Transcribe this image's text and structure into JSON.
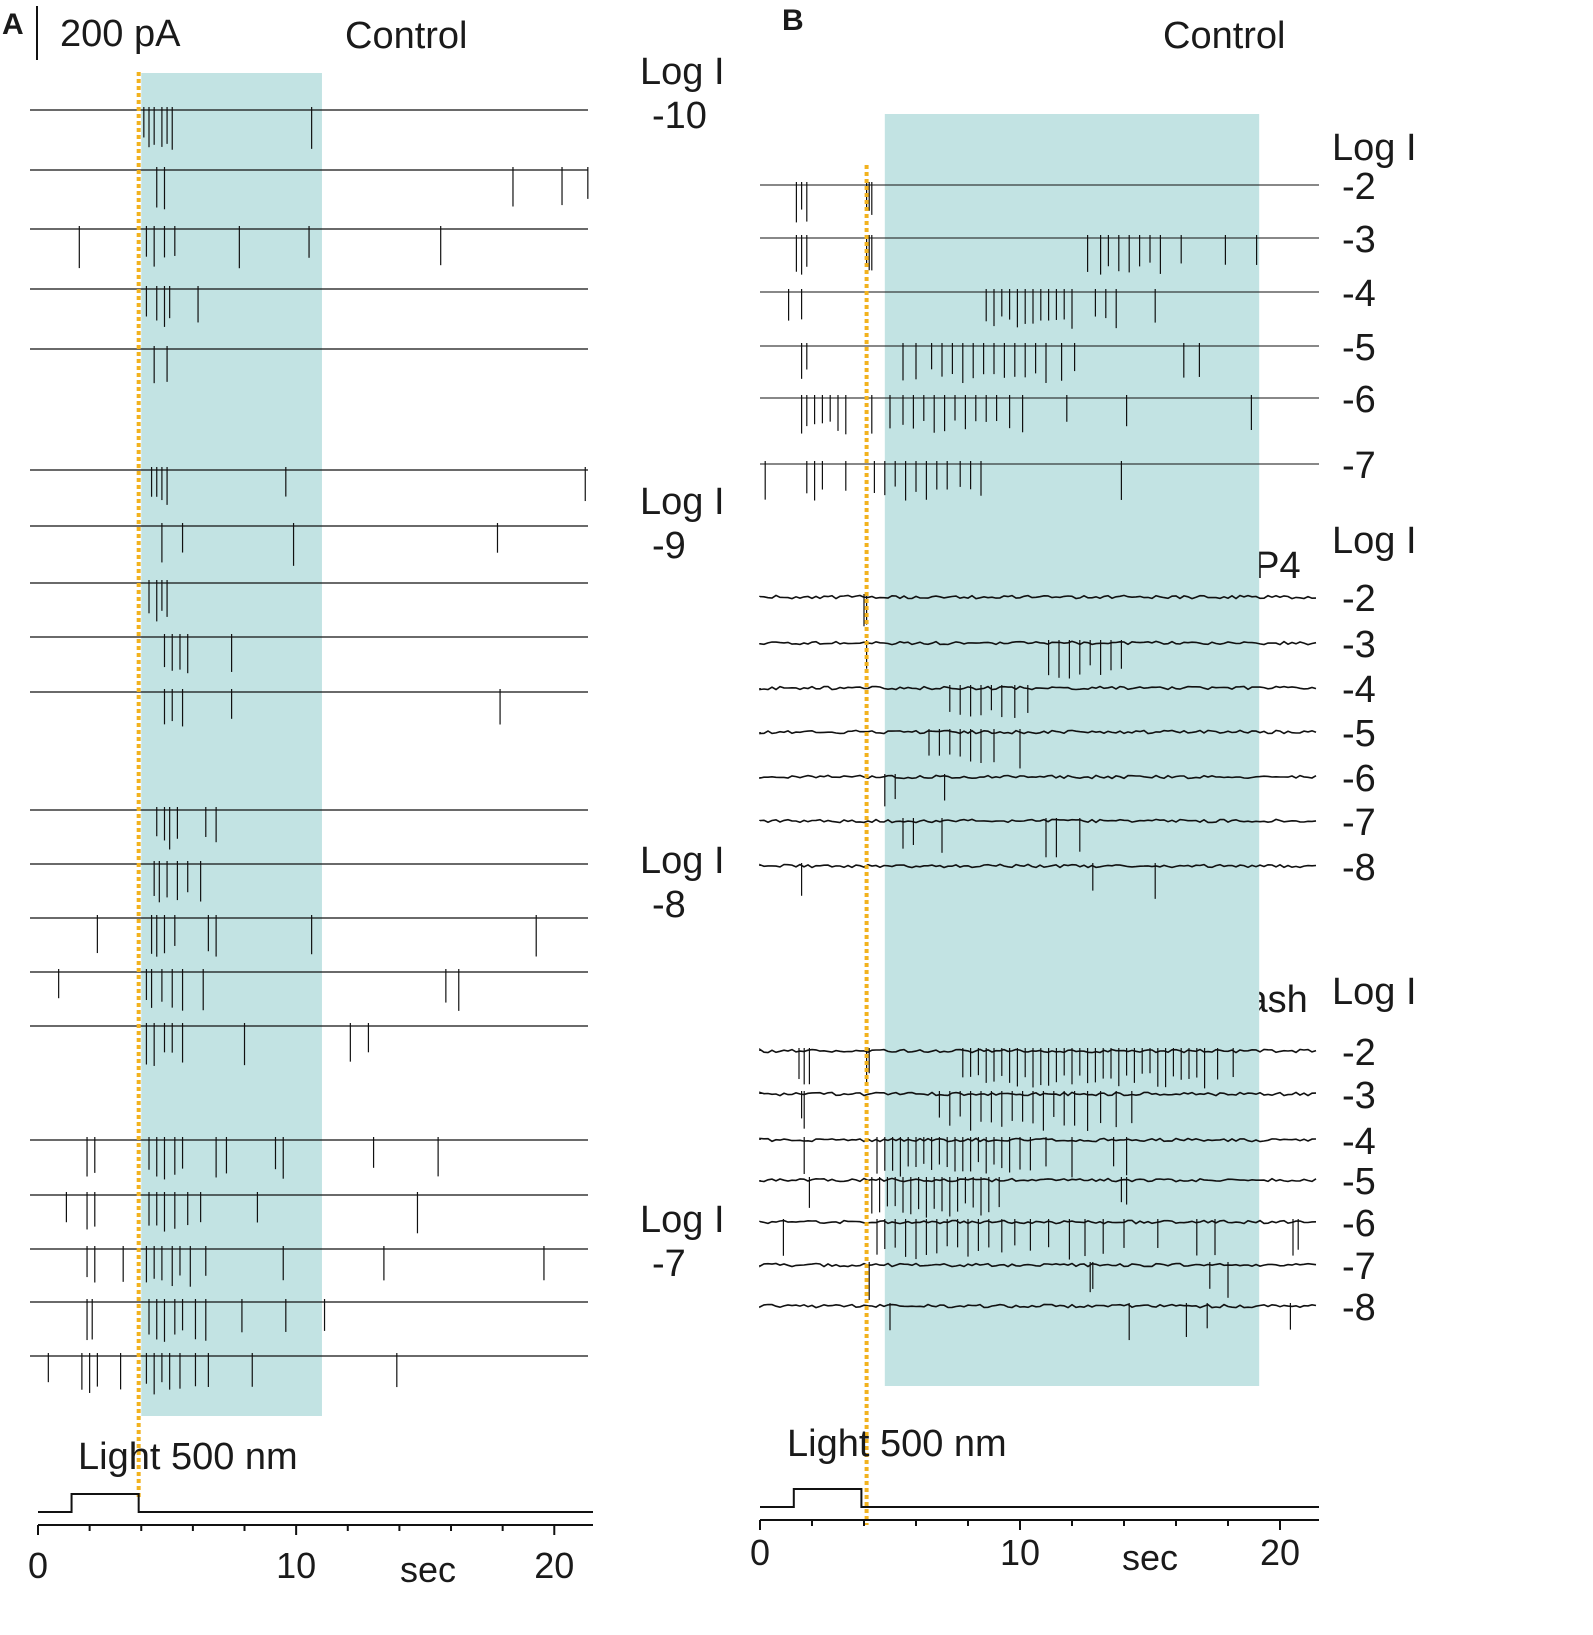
{
  "figure": {
    "scale_bar_label": "200 pA",
    "light_label": "Light 500 nm",
    "axis_unit": "sec",
    "axis_ticks": [
      "0",
      "10",
      "20"
    ],
    "colors": {
      "shading": "#c2e3e3",
      "stimulus_line": "#f2b21e",
      "trace": "#111111",
      "noise_tint": "#c0392b"
    }
  },
  "chart_data": [
    {
      "panel": "A",
      "type": "line",
      "title": "Control",
      "xlabel": "sec",
      "xlim": [
        0,
        21.5
      ],
      "stimulus_onset_s": 3.9,
      "light_on_s": [
        1.3,
        3.9
      ],
      "shaded_interval_s": [
        4.0,
        11.0
      ],
      "groups": [
        {
          "label": "Log I",
          "value": "-10",
          "traces": [
            {
              "spikes_s": [
                4.1,
                4.3,
                4.5,
                4.8,
                5.0,
                5.2,
                10.6
              ]
            },
            {
              "spikes_s": [
                4.6,
                4.9,
                18.4,
                20.3,
                21.3
              ]
            },
            {
              "spikes_s": [
                1.6,
                4.2,
                4.5,
                4.9,
                5.3,
                7.8,
                10.5,
                15.6
              ]
            },
            {
              "spikes_s": [
                4.2,
                4.6,
                4.9,
                5.1,
                6.2
              ]
            },
            {
              "spikes_s": [
                4.5,
                5.0
              ]
            }
          ]
        },
        {
          "label": "Log I",
          "value": "-9",
          "traces": [
            {
              "spikes_s": [
                4.4,
                4.6,
                4.8,
                5.0,
                9.6,
                21.2
              ]
            },
            {
              "spikes_s": [
                4.8,
                5.6,
                9.9,
                17.8
              ]
            },
            {
              "spikes_s": [
                4.3,
                4.6,
                4.8,
                5.0
              ]
            },
            {
              "spikes_s": [
                4.9,
                5.2,
                5.5,
                5.8,
                7.5
              ]
            },
            {
              "spikes_s": [
                4.9,
                5.2,
                5.6,
                7.5,
                17.9
              ]
            }
          ]
        },
        {
          "label": "Log I",
          "value": "-8",
          "traces": [
            {
              "spikes_s": [
                4.6,
                4.9,
                5.1,
                5.4,
                6.5,
                6.9
              ]
            },
            {
              "spikes_s": [
                4.5,
                4.7,
                5.0,
                5.4,
                5.8,
                6.3
              ]
            },
            {
              "spikes_s": [
                2.3,
                4.4,
                4.6,
                4.9,
                5.3,
                6.6,
                6.9,
                10.6,
                19.3
              ]
            },
            {
              "spikes_s": [
                0.8,
                4.2,
                4.4,
                4.8,
                5.2,
                5.6,
                6.4,
                15.8,
                16.3
              ]
            },
            {
              "spikes_s": [
                4.2,
                4.5,
                4.9,
                5.2,
                5.6,
                8.0,
                12.1,
                12.8
              ]
            }
          ]
        },
        {
          "label": "Log I",
          "value": "-7",
          "traces": [
            {
              "spikes_s": [
                1.9,
                2.2,
                4.3,
                4.6,
                4.9,
                5.3,
                5.6,
                6.9,
                7.3,
                9.2,
                9.5,
                13.0,
                15.5
              ]
            },
            {
              "spikes_s": [
                1.1,
                1.9,
                2.2,
                4.3,
                4.6,
                4.9,
                5.3,
                5.8,
                6.3,
                8.5,
                14.7
              ]
            },
            {
              "spikes_s": [
                1.9,
                2.2,
                3.3,
                4.2,
                4.5,
                4.8,
                5.2,
                5.5,
                5.9,
                6.5,
                9.5,
                13.4,
                19.6
              ]
            },
            {
              "spikes_s": [
                1.9,
                2.1,
                4.3,
                4.6,
                4.9,
                5.3,
                5.6,
                6.1,
                6.5,
                7.9,
                9.6,
                11.1
              ]
            },
            {
              "spikes_s": [
                0.4,
                1.7,
                2.0,
                2.3,
                3.2,
                4.2,
                4.5,
                4.8,
                5.1,
                5.5,
                6.1,
                6.6,
                8.3,
                13.9
              ]
            }
          ]
        }
      ]
    },
    {
      "panel": "B",
      "type": "line",
      "xlabel": "sec",
      "xlim": [
        0,
        21.5
      ],
      "stimulus_onset_s": 4.1,
      "light_on_s": [
        1.3,
        3.9
      ],
      "shaded_interval_s": [
        4.8,
        19.2
      ],
      "groups": [
        {
          "label": "Control",
          "intensity_label": "Log I",
          "traces": [
            {
              "value": "-2",
              "spikes_s": [
                1.4,
                1.6,
                1.8,
                4.1,
                4.2,
                4.3
              ]
            },
            {
              "value": "-3",
              "spikes_s": [
                1.4,
                1.6,
                1.8,
                4.1,
                4.2,
                4.3,
                12.6,
                13.1,
                13.4,
                13.8,
                14.2,
                14.6,
                15.0,
                15.4,
                16.2,
                17.9,
                19.1
              ]
            },
            {
              "value": "-4",
              "spikes_s": [
                1.1,
                1.6,
                8.7,
                9.0,
                9.3,
                9.6,
                9.9,
                10.2,
                10.5,
                10.8,
                11.1,
                11.4,
                11.7,
                12.0,
                12.9,
                13.3,
                13.7,
                15.2
              ]
            },
            {
              "value": "-5",
              "spikes_s": [
                1.6,
                1.8,
                5.5,
                6.0,
                6.6,
                7.0,
                7.4,
                7.8,
                8.2,
                8.6,
                9.0,
                9.4,
                9.8,
                10.2,
                10.6,
                11.0,
                11.6,
                12.1,
                16.3,
                16.9
              ]
            },
            {
              "value": "-6",
              "spikes_s": [
                1.6,
                1.8,
                2.1,
                2.4,
                2.7,
                3.0,
                3.3,
                4.3,
                5.0,
                5.5,
                5.9,
                6.3,
                6.7,
                7.1,
                7.5,
                7.9,
                8.3,
                8.7,
                9.1,
                9.6,
                10.1,
                11.8,
                14.1,
                18.9
              ]
            },
            {
              "value": "-7",
              "spikes_s": [
                0.2,
                1.8,
                2.1,
                2.4,
                3.3,
                4.4,
                4.8,
                5.2,
                5.6,
                6.0,
                6.4,
                6.8,
                7.2,
                7.7,
                8.1,
                8.5,
                13.9
              ]
            }
          ]
        },
        {
          "label": "L-AP4",
          "intensity_label": "Log I",
          "traces": [
            {
              "value": "-2",
              "spikes_s": [
                4.0,
                4.1
              ]
            },
            {
              "value": "-3",
              "spikes_s": [
                4.1,
                11.1,
                11.5,
                11.9,
                12.3,
                12.7,
                13.1,
                13.5,
                13.9
              ]
            },
            {
              "value": "-4",
              "spikes_s": [
                7.3,
                7.7,
                8.1,
                8.5,
                8.9,
                9.3,
                9.8,
                10.3
              ]
            },
            {
              "value": "-5",
              "spikes_s": [
                6.5,
                6.9,
                7.3,
                7.7,
                8.1,
                8.5,
                9.0,
                10.0
              ]
            },
            {
              "value": "-6",
              "spikes_s": [
                4.8,
                5.2,
                7.1
              ]
            },
            {
              "value": "-7",
              "spikes_s": [
                5.5,
                5.9,
                7.0,
                11.0,
                11.4,
                12.3
              ]
            },
            {
              "value": "-8",
              "spikes_s": [
                1.6,
                12.8,
                15.2
              ]
            }
          ]
        },
        {
          "label": "Wash",
          "intensity_label": "Log I",
          "traces": [
            {
              "value": "-2",
              "spikes_s": [
                1.5,
                1.7,
                1.9,
                4.1,
                4.2,
                7.8,
                8.1,
                8.4,
                8.7,
                9.0,
                9.3,
                9.6,
                9.9,
                10.2,
                10.5,
                10.8,
                11.1,
                11.4,
                11.7,
                12.0,
                12.3,
                12.6,
                12.9,
                13.2,
                13.5,
                13.8,
                14.1,
                14.4,
                14.7,
                15.0,
                15.3,
                15.6,
                15.9,
                16.2,
                16.5,
                16.8,
                17.1,
                17.6,
                18.2
              ]
            },
            {
              "value": "-3",
              "spikes_s": [
                1.6,
                1.7,
                6.9,
                7.3,
                7.7,
                8.1,
                8.5,
                8.9,
                9.3,
                9.7,
                10.1,
                10.5,
                10.9,
                11.3,
                11.7,
                12.1,
                12.6,
                13.1,
                13.7,
                14.3
              ]
            },
            {
              "value": "-4",
              "spikes_s": [
                1.7,
                4.5,
                4.8,
                5.1,
                5.4,
                5.7,
                6.0,
                6.3,
                6.6,
                6.9,
                7.2,
                7.5,
                7.8,
                8.1,
                8.4,
                8.7,
                9.0,
                9.3,
                9.6,
                10.0,
                10.4,
                11.0,
                12.0,
                13.6,
                14.1
              ]
            },
            {
              "value": "-5",
              "spikes_s": [
                1.9,
                4.3,
                4.6,
                4.9,
                5.2,
                5.5,
                5.8,
                6.1,
                6.4,
                6.7,
                7.0,
                7.3,
                7.6,
                7.9,
                8.2,
                8.5,
                8.8,
                9.2,
                13.9,
                14.1
              ]
            },
            {
              "value": "-6",
              "spikes_s": [
                0.9,
                4.5,
                4.8,
                5.2,
                5.6,
                6.0,
                6.4,
                6.8,
                7.2,
                7.6,
                8.0,
                8.4,
                8.8,
                9.3,
                9.8,
                10.4,
                11.1,
                11.9,
                12.5,
                13.2,
                14.0,
                15.3,
                16.8,
                17.5,
                20.5,
                20.7
              ]
            },
            {
              "value": "-7",
              "spikes_s": [
                4.2,
                12.7,
                12.8,
                17.3,
                18.0
              ]
            },
            {
              "value": "-8",
              "spikes_s": [
                5.0,
                14.2,
                16.4,
                17.2,
                20.4
              ]
            }
          ]
        }
      ]
    }
  ]
}
